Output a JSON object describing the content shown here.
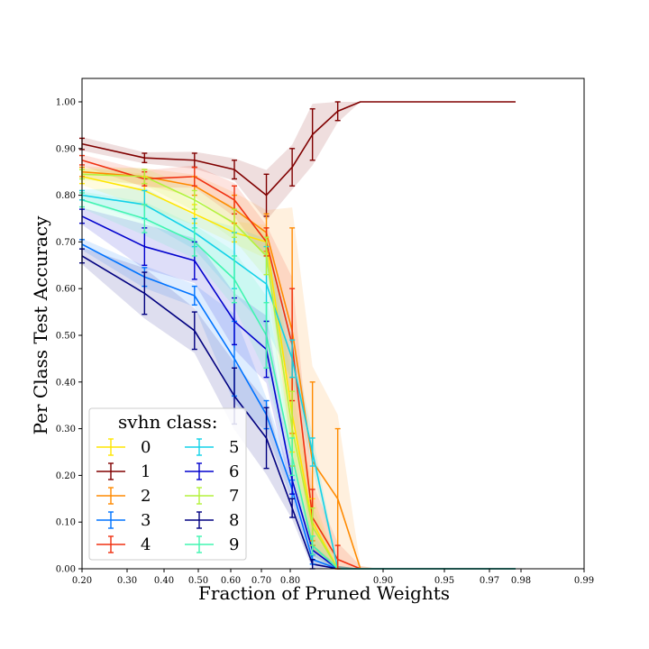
{
  "chart_data": {
    "type": "line",
    "xlabel": "Fraction of Pruned Weights",
    "ylabel": "Per Class Test Accuracy",
    "ylim": [
      0,
      1.05
    ],
    "grid": false,
    "x_tick_labels": [
      "0.20",
      "0.30",
      "0.40",
      "0.50",
      "0.60",
      "0.70",
      "0.80",
      "0.90",
      "0.95",
      "0.97",
      "0.98",
      "0.99"
    ],
    "y_ticks": [
      0,
      0.1,
      0.2,
      0.3,
      0.4,
      0.5,
      0.6,
      0.7,
      0.8,
      0.9,
      1.0
    ],
    "y_tick_labels": [
      "0.00",
      "0.10",
      "0.20",
      "0.30",
      "0.40",
      "0.50",
      "0.60",
      "0.70",
      "0.80",
      "0.90",
      "1.00"
    ],
    "x_points": [
      0.2,
      0.36,
      0.488,
      0.59,
      0.672,
      0.738,
      0.79,
      0.832,
      0.866,
      0.893
    ],
    "x_end_point": 0.9785,
    "legend": {
      "title": "svhn class:",
      "location": "lower-left",
      "columns": 2
    },
    "series": [
      {
        "name": "0",
        "color": "#ffe600",
        "values": [
          0.84,
          0.81,
          0.76,
          0.72,
          0.7,
          0.33,
          0.1,
          0.0,
          0.0,
          0.0
        ],
        "errors": [
          0.015,
          0.03,
          0.02,
          0.02,
          0.03,
          0.08,
          0.05,
          0.005,
          0,
          0
        ]
      },
      {
        "name": "1",
        "color": "#800000",
        "values": [
          0.91,
          0.88,
          0.875,
          0.855,
          0.8,
          0.86,
          0.93,
          0.98,
          1.0,
          1.0
        ],
        "errors": [
          0.012,
          0.01,
          0.015,
          0.02,
          0.045,
          0.04,
          0.055,
          0.02,
          0,
          0
        ]
      },
      {
        "name": "2",
        "color": "#ff8a00",
        "values": [
          0.85,
          0.84,
          0.82,
          0.77,
          0.72,
          0.51,
          0.23,
          0.15,
          0.0,
          0.0
        ],
        "errors": [
          0.01,
          0.015,
          0.02,
          0.03,
          0.04,
          0.22,
          0.17,
          0.15,
          0.005,
          0
        ]
      },
      {
        "name": "3",
        "color": "#0073ff",
        "values": [
          0.695,
          0.625,
          0.585,
          0.45,
          0.33,
          0.17,
          0.02,
          0.0,
          0.0,
          0.0
        ],
        "errors": [
          0.01,
          0.02,
          0.02,
          0.08,
          0.03,
          0.02,
          0.01,
          0.005,
          0,
          0
        ]
      },
      {
        "name": "4",
        "color": "#f03010",
        "values": [
          0.875,
          0.835,
          0.84,
          0.79,
          0.7,
          0.48,
          0.11,
          0.02,
          0.0,
          0.0
        ],
        "errors": [
          0.01,
          0.015,
          0.02,
          0.03,
          0.03,
          0.12,
          0.06,
          0.03,
          0.005,
          0
        ]
      },
      {
        "name": "5",
        "color": "#12d2e8",
        "values": [
          0.8,
          0.78,
          0.72,
          0.66,
          0.61,
          0.45,
          0.25,
          0.0,
          0.0,
          0.0
        ],
        "errors": [
          0.01,
          0.03,
          0.03,
          0.06,
          0.08,
          0.04,
          0.03,
          0.005,
          0,
          0
        ]
      },
      {
        "name": "6",
        "color": "#0000cd",
        "values": [
          0.755,
          0.69,
          0.66,
          0.53,
          0.47,
          0.19,
          0.04,
          0.0,
          0.0,
          0.0
        ],
        "errors": [
          0.015,
          0.04,
          0.04,
          0.05,
          0.06,
          0.03,
          0.01,
          0.005,
          0,
          0
        ]
      },
      {
        "name": "7",
        "color": "#b4f23c",
        "values": [
          0.845,
          0.84,
          0.79,
          0.74,
          0.67,
          0.3,
          0.09,
          0.0,
          0.0,
          0.0
        ],
        "errors": [
          0.01,
          0.015,
          0.02,
          0.03,
          0.04,
          0.08,
          0.04,
          0.005,
          0,
          0
        ]
      },
      {
        "name": "8",
        "color": "#000080",
        "values": [
          0.67,
          0.59,
          0.51,
          0.37,
          0.28,
          0.13,
          0.01,
          0.0,
          0.0,
          0.0
        ],
        "errors": [
          0.015,
          0.045,
          0.04,
          0.06,
          0.065,
          0.02,
          0.01,
          0.005,
          0,
          0
        ]
      },
      {
        "name": "9",
        "color": "#40f5b0",
        "values": [
          0.79,
          0.75,
          0.7,
          0.62,
          0.5,
          0.24,
          0.05,
          0.0,
          0.0,
          0.0
        ],
        "errors": [
          0.015,
          0.03,
          0.03,
          0.05,
          0.07,
          0.04,
          0.02,
          0.005,
          0,
          0
        ]
      }
    ]
  }
}
